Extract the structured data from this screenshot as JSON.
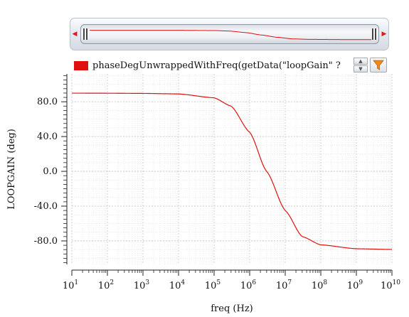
{
  "legend": {
    "label": "phaseDegUnwrappedWithFreq(getData(\"loopGain\" ?",
    "color": "#e01010"
  },
  "controls": {
    "scroll_left_icon": "◀",
    "scroll_right_icon": "▶",
    "spin_up_icon": "▲",
    "spin_down_icon": "▼",
    "filter_icon": "filter-icon"
  },
  "chart_data": {
    "type": "line",
    "title": "",
    "xlabel": "freq (Hz)",
    "ylabel": "LOOPGAIN (deg)",
    "xscale": "log",
    "xlim": [
      10,
      10000000000
    ],
    "ylim": [
      -107,
      112
    ],
    "grid": true,
    "x_tick_labels": [
      {
        "base": "10",
        "exp": "1"
      },
      {
        "base": "10",
        "exp": "2"
      },
      {
        "base": "10",
        "exp": "3"
      },
      {
        "base": "10",
        "exp": "4"
      },
      {
        "base": "10",
        "exp": "5"
      },
      {
        "base": "10",
        "exp": "6"
      },
      {
        "base": "10",
        "exp": "7"
      },
      {
        "base": "10",
        "exp": "8"
      },
      {
        "base": "10",
        "exp": "9"
      },
      {
        "base": "10",
        "exp": "10"
      }
    ],
    "y_ticks": [
      80.0,
      40.0,
      0.0,
      -40.0,
      -80.0
    ],
    "y_tick_labels": [
      "80.0",
      "40.0",
      "0.0",
      "-40.0",
      "-80.0"
    ],
    "series": [
      {
        "color": "#e01010",
        "x": [
          10,
          100,
          1000,
          10000,
          100000,
          300000,
          1000000,
          3000000,
          10000000,
          30000000,
          100000000,
          1000000000,
          10000000000
        ],
        "y": [
          89.9,
          89.8,
          89.6,
          89.0,
          84.5,
          75.0,
          45.0,
          0.0,
          -45.0,
          -75.0,
          -84.5,
          -89.0,
          -89.8
        ]
      }
    ]
  }
}
